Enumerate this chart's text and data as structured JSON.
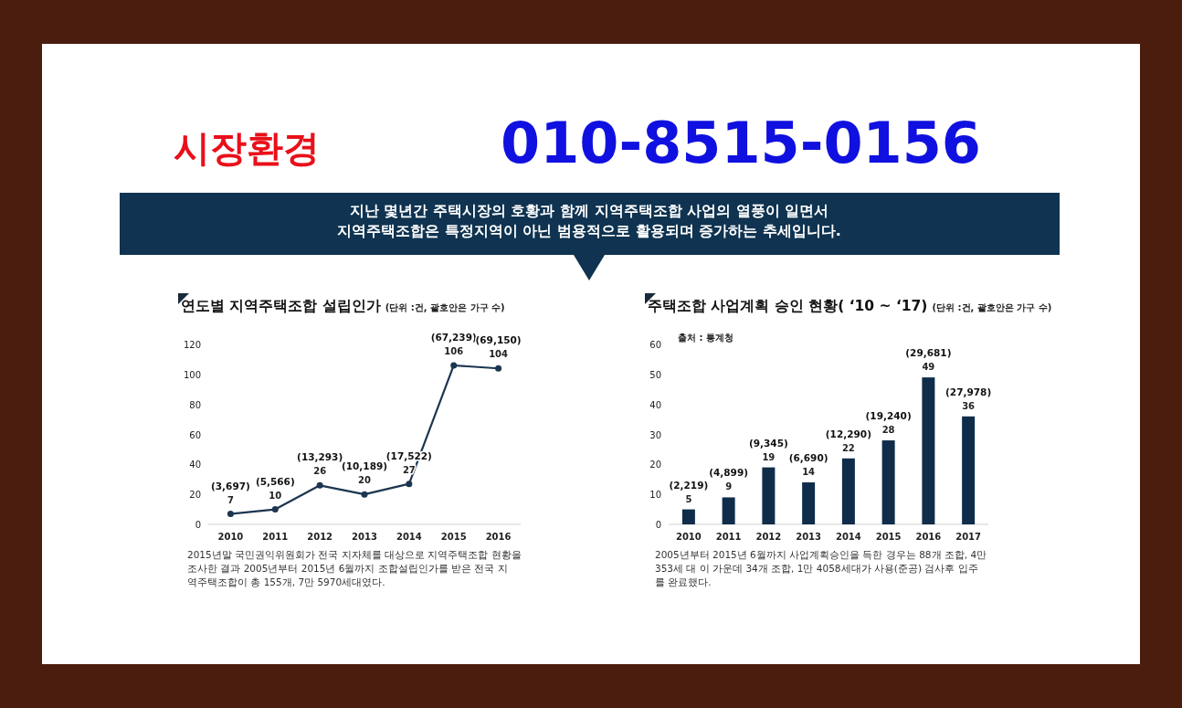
{
  "chart_data": [
    {
      "type": "line",
      "title": "연도별 지역주택조합 설립인가",
      "subtitle": "(단위 :건, 괄호안은 가구 수)",
      "categories": [
        "2010",
        "2011",
        "2012",
        "2013",
        "2014",
        "2015",
        "2016"
      ],
      "values": [
        7,
        10,
        26,
        20,
        27,
        106,
        104
      ],
      "color": "#1c3550",
      "marker": "circle",
      "ylim": [
        0,
        120
      ],
      "yticks": [
        0,
        20,
        40,
        60,
        80,
        100,
        120
      ],
      "grid": false,
      "data_labels": true,
      "annotations": [
        "시장환경",
        "010-8515-0156",
        "지난 몇년간 주택시장의 호황과 함께 지역주택조합 사업의 열풍이 일면서\n지역주택조합은 특정지역이 아닌 범용적으로 활용되며 증가하는 추세입니다.",
        "2015년말 국민권익위원회가 전국 지자체를 대상으로 지역주택조합 현황을\n조사한  결과 2005년부터 2015년 6월까지 조합설립인가를 받은 전국 지\n역주택조합이 총  155개, 7만 5970세대였다.",
        {
          "text": "(3,697)",
          "x": "2010",
          "y": 7
        },
        {
          "text": "(5,566)",
          "x": "2011",
          "y": 10
        },
        {
          "text": "(13,293)",
          "x": "2012",
          "y": 26
        },
        {
          "text": "(10,189)",
          "x": "2013",
          "y": 20
        },
        {
          "text": "(17,522)",
          "x": "2014",
          "y": 27
        },
        {
          "text": "(67,239)",
          "x": "2015",
          "y": 106
        },
        {
          "text": "(69,150)",
          "x": "2016",
          "y": 104
        }
      ]
    },
    {
      "type": "bar",
      "title": "주택조합 사업계획 승인 현황( ‘10 ~ ‘17)",
      "subtitle": "(단위 :건, 괄호안은 가구 수)",
      "categories": [
        "2010",
        "2011",
        "2012",
        "2013",
        "2014",
        "2015",
        "2016",
        "2017"
      ],
      "values": [
        5,
        9,
        19,
        14,
        22,
        28,
        49,
        36
      ],
      "color": "#0f2d4a",
      "ylim": [
        0,
        60
      ],
      "yticks": [
        0,
        10,
        20,
        30,
        40,
        50,
        60
      ],
      "grid": false,
      "data_labels": true,
      "annotations": [
        "출처 : 통계청",
        "2005년부터 2015년 6월까지 사업계획승인을 득한 경우는 88개 조합, 4만\n353세  대 이 가운데 34개 조합, 1만 4058세대가 사용(준공) 검사후 입주\n를 완료했다.",
        {
          "text": "(2,219)",
          "x": "2010",
          "y": 5
        },
        {
          "text": "(4,899)",
          "x": "2011",
          "y": 9
        },
        {
          "text": "(9,345)",
          "x": "2012",
          "y": 19
        },
        {
          "text": "(6,690)",
          "x": "2013",
          "y": 14
        },
        {
          "text": "(12,290)",
          "x": "2014",
          "y": 22
        },
        {
          "text": "(19,240)",
          "x": "2015",
          "y": 28
        },
        {
          "text": "(29,681)",
          "x": "2016",
          "y": 49
        },
        {
          "text": "(27,978)",
          "x": "2017",
          "y": 36
        }
      ]
    }
  ]
}
